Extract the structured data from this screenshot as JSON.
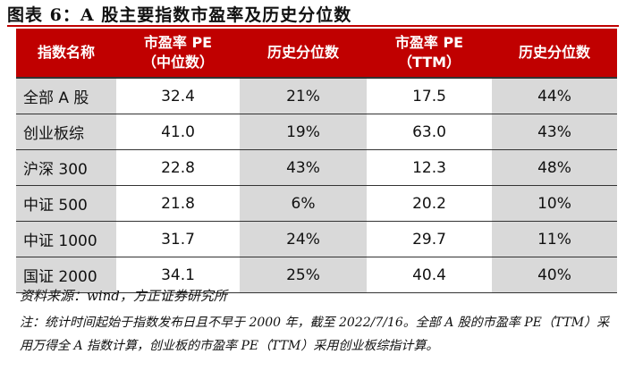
{
  "header": {
    "title": "图表 6：A 股主要指数市盈率及历史分位数"
  },
  "table": {
    "columns": [
      "指数名称",
      "市盈率 PE\n（中位数）",
      "历史分位数",
      "市盈率 PE\n（TTM）",
      "历史分位数"
    ],
    "rows": [
      [
        "全部 A 股",
        "32.4",
        "21%",
        "17.5",
        "44%"
      ],
      [
        "创业板综",
        "41.0",
        "19%",
        "63.0",
        "43%"
      ],
      [
        "沪深 300",
        "22.8",
        "43%",
        "12.3",
        "48%"
      ],
      [
        "中证 500",
        "21.8",
        "6%",
        "20.2",
        "10%"
      ],
      [
        "中证 1000",
        "31.7",
        "24%",
        "29.7",
        "11%"
      ],
      [
        "国证 2000",
        "34.1",
        "25%",
        "40.4",
        "40%"
      ]
    ]
  },
  "footer": {
    "source": "资料来源：wind，方正证券研究所",
    "note": "注：统计时间起始于指数发布日且不早于 2000 年，截至 2022/7/16。全部 A 股的市盈率 PE（TTM）采用万得全 A 指数计算，创业板的市盈率 PE（TTM）采用创业板综指计算。"
  }
}
